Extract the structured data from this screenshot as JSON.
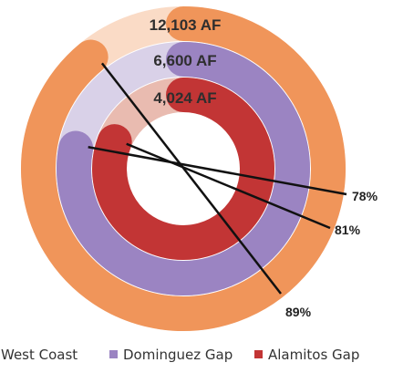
{
  "chart_data": {
    "type": "radial-bar",
    "series": [
      {
        "name": "West Coast",
        "total_label": "12,103 AF",
        "percent": 89,
        "percent_label": "89%"
      },
      {
        "name": "Dominguez Gap",
        "total_label": "6,600 AF",
        "percent": 78,
        "percent_label": "78%"
      },
      {
        "name": "Alamitos Gap",
        "total_label": "4,024 AF",
        "percent": 81,
        "percent_label": "81%"
      }
    ],
    "legend_position": "bottom"
  },
  "colors": {
    "west_coast": "#F0955A",
    "west_coast_track": "#FADBC6",
    "dominguez_gap": "#9B84C2",
    "dominguez_gap_track": "#D9D1E8",
    "alamitos_gap": "#C23535",
    "alamitos_gap_track": "#E9BBB0",
    "value_label": "#2E2E2E",
    "leader_line": "#111111"
  }
}
